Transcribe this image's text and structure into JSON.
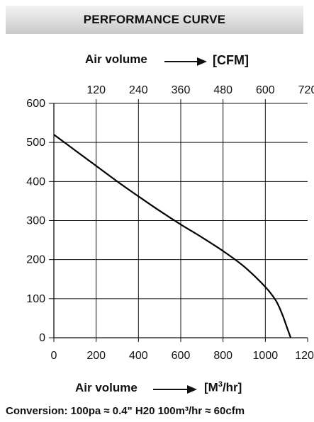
{
  "chart_data": {
    "type": "line",
    "title": "PERFORMANCE CURVE",
    "top_axis": {
      "label": "Air volume",
      "unit": "[CFM]",
      "ticks": [
        120,
        240,
        360,
        480,
        600,
        720
      ],
      "range": [
        0,
        720
      ]
    },
    "x_axis": {
      "label": "Air volume",
      "unit_prefix": "[M",
      "unit_sup": "3",
      "unit_suffix": "/hr]",
      "ticks": [
        0,
        200,
        400,
        600,
        800,
        1000,
        1200
      ],
      "range": [
        0,
        1200
      ]
    },
    "y_axis": {
      "label": "",
      "ticks": [
        0,
        100,
        200,
        300,
        400,
        500,
        600
      ],
      "range": [
        0,
        600
      ]
    },
    "grid": true,
    "series": [
      {
        "x": [
          0,
          100,
          200,
          300,
          400,
          500,
          600,
          700,
          800,
          900,
          1000,
          1050,
          1080,
          1100,
          1120
        ],
        "y": [
          520,
          480,
          440,
          400,
          362,
          325,
          290,
          257,
          222,
          182,
          130,
          95,
          60,
          30,
          0
        ]
      }
    ],
    "conversion": "Conversion: 100pa ≈ 0.4\" H20 100m³/hr ≈ 60cfm"
  }
}
